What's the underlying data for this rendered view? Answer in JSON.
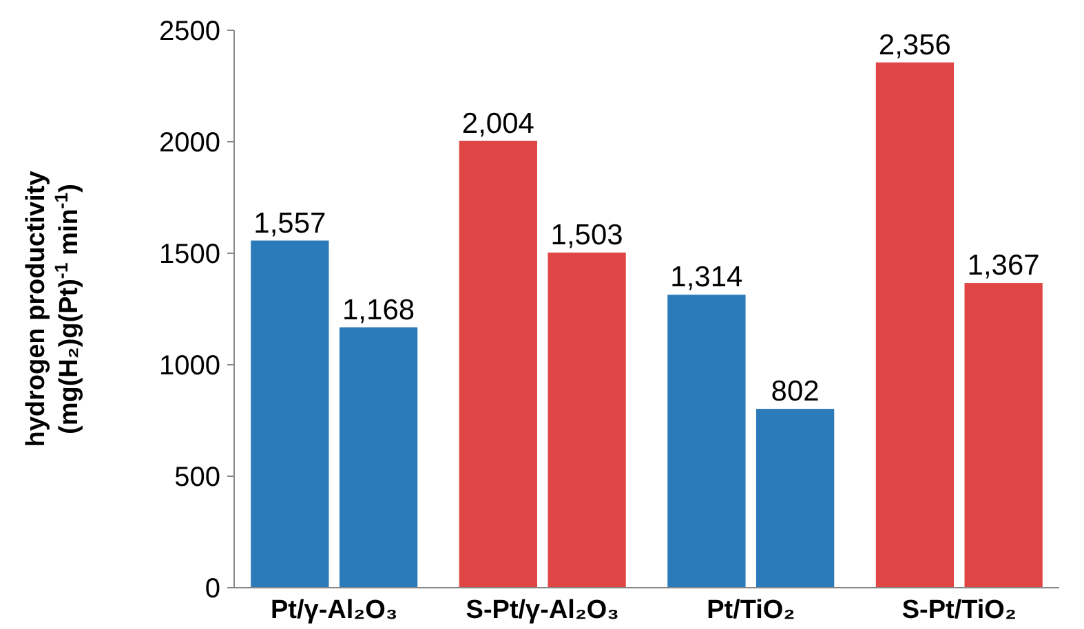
{
  "chart_data": {
    "type": "bar",
    "ylabel": "hydrogen productivity (mg(H₂)g(Pt)$^{-1}$ min$^{-1}$)",
    "categories": [
      "Pt/γ-Al₂O₃",
      "S-Pt/γ-Al₂O₃",
      "Pt/TiO₂",
      "S-Pt/TiO₂"
    ],
    "series": [
      {
        "values": [
          1557,
          2004,
          1314,
          2356
        ],
        "colors": [
          "#2b7bba",
          "#e04646",
          "#2b7bba",
          "#e04646"
        ],
        "value_labels": [
          "1,557",
          "2,004",
          "1,314",
          "2,356"
        ]
      },
      {
        "values": [
          1168,
          1503,
          802,
          1367
        ],
        "colors": [
          "#2b7bba",
          "#e04646",
          "#2b7bba",
          "#e04646"
        ],
        "value_labels": [
          "1,168",
          "1,503",
          "802",
          "1,367"
        ]
      }
    ],
    "ylim": [
      0,
      2500
    ],
    "yticks": [
      0,
      500,
      1000,
      1500,
      2000,
      2500
    ],
    "grid": false
  }
}
